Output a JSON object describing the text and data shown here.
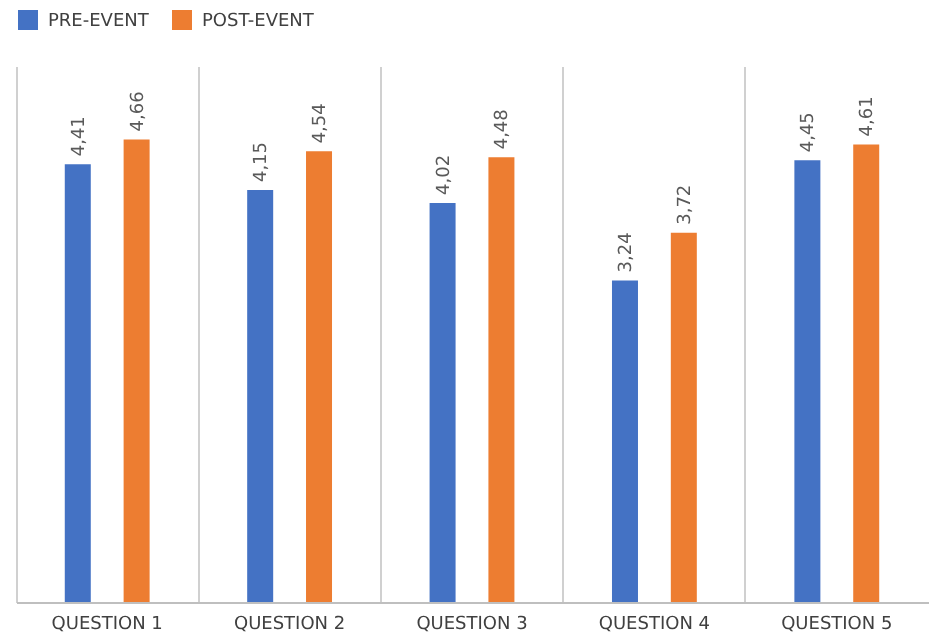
{
  "chart_data": {
    "type": "bar",
    "categories": [
      "QUESTION 1",
      "QUESTION 2",
      "QUESTION 3",
      "QUESTION 4",
      "QUESTION 5"
    ],
    "series": [
      {
        "name": "PRE-EVENT",
        "color": "#4472c4",
        "values": [
          4.41,
          4.15,
          4.02,
          3.24,
          4.45
        ],
        "value_labels": [
          "4,41",
          "4,15",
          "4,02",
          "3,24",
          "4,45"
        ]
      },
      {
        "name": "POST-EVENT",
        "color": "#ed7d31",
        "values": [
          4.66,
          4.54,
          4.48,
          3.72,
          4.61
        ],
        "value_labels": [
          "4,66",
          "4,54",
          "4,48",
          "3,72",
          "4,61"
        ]
      }
    ],
    "ylim": [
      0,
      5.4
    ],
    "grid": "x",
    "legend": "top",
    "tick_labels": "x"
  }
}
